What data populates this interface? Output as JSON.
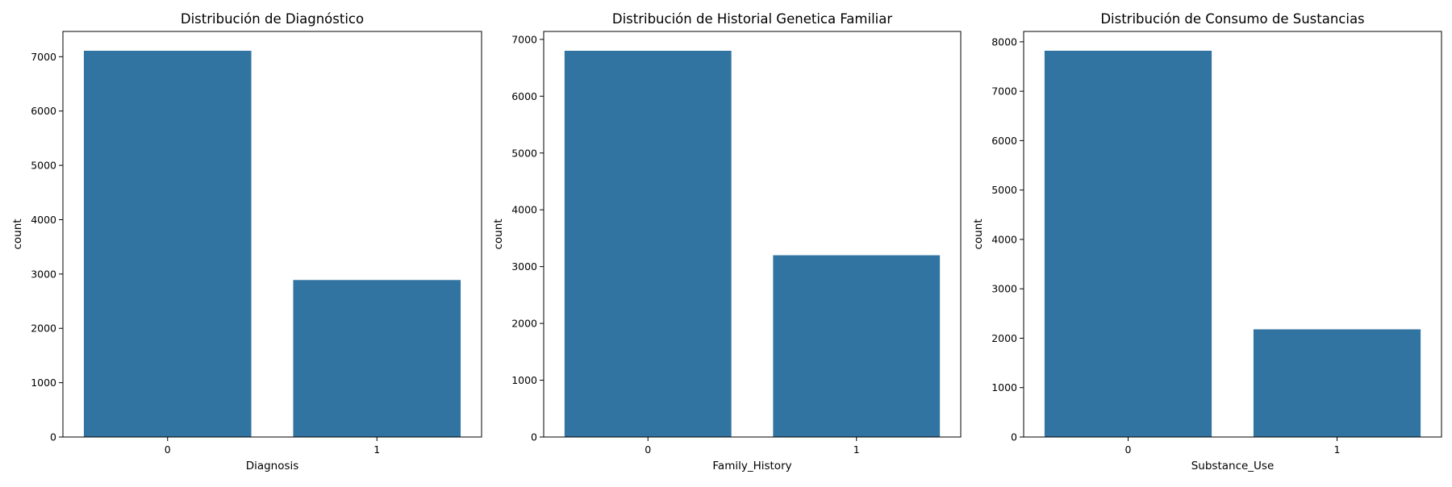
{
  "bar_color": "#3274a1",
  "chart_data": [
    {
      "type": "bar",
      "title": "Distribución de Diagnóstico",
      "xlabel": "Diagnosis",
      "ylabel": "count",
      "categories": [
        "0",
        "1"
      ],
      "values": [
        7110,
        2890
      ],
      "yticks": [
        0,
        1000,
        2000,
        3000,
        4000,
        5000,
        6000,
        7000
      ],
      "ylim": [
        0,
        7465
      ]
    },
    {
      "type": "bar",
      "title": "Distribución de Historial Genetica Familiar",
      "xlabel": "Family_History",
      "ylabel": "count",
      "categories": [
        "0",
        "1"
      ],
      "values": [
        6800,
        3200
      ],
      "yticks": [
        0,
        1000,
        2000,
        3000,
        4000,
        5000,
        6000,
        7000
      ],
      "ylim": [
        0,
        7140
      ]
    },
    {
      "type": "bar",
      "title": "Distribución de Consumo de Sustancias",
      "xlabel": "Substance_Use",
      "ylabel": "count",
      "categories": [
        "0",
        "1"
      ],
      "values": [
        7820,
        2180
      ],
      "yticks": [
        0,
        1000,
        2000,
        3000,
        4000,
        5000,
        6000,
        7000,
        8000
      ],
      "ylim": [
        0,
        8210
      ]
    }
  ]
}
